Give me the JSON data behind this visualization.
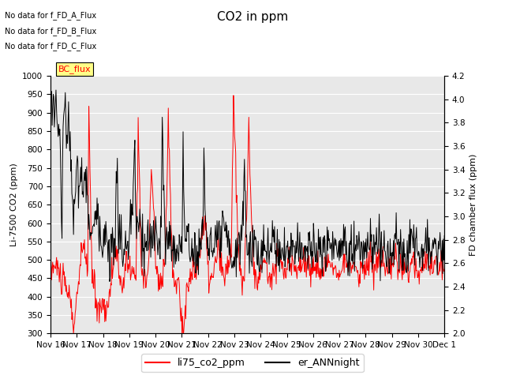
{
  "title": "CO2 in ppm",
  "ylabel_left": "Li-7500 CO2 (ppm)",
  "ylabel_right": "FD chamber flux (ppm)",
  "ylim_left": [
    300,
    1000
  ],
  "ylim_right": [
    2.0,
    4.2
  ],
  "xtick_labels": [
    "Nov 16",
    "Nov 17",
    "Nov 18",
    "Nov 19",
    "Nov 20",
    "Nov 21",
    "Nov 22",
    "Nov 23",
    "Nov 24",
    "Nov 25",
    "Nov 26",
    "Nov 27",
    "Nov 28",
    "Nov 29",
    "Nov 30",
    "Dec 1"
  ],
  "legend_entries": [
    "li75_co2_ppm",
    "er_ANNnight"
  ],
  "legend_colors": [
    "red",
    "black"
  ],
  "text_lines": [
    "No data for f_FD_A_Flux",
    "No data for f_FD_B_Flux",
    "No data for f_FD_C_Flux"
  ],
  "bc_flux_label": "BC_flux",
  "background_color": "#e8e8e8",
  "grid_color": "white",
  "title_fontsize": 11,
  "label_fontsize": 8,
  "tick_fontsize": 7.5
}
